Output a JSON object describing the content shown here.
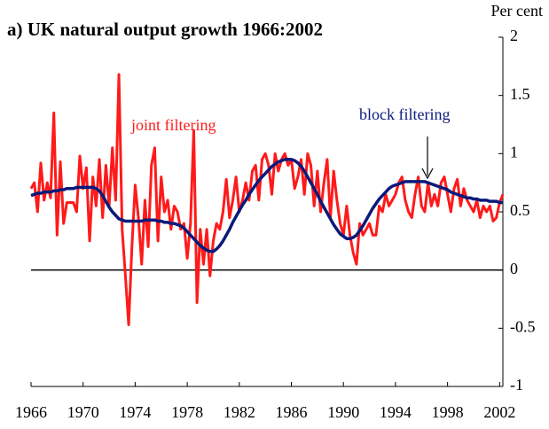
{
  "chart_data": {
    "type": "line",
    "title": "a) UK natural output growth 1966:2002",
    "y_label": "Per cent",
    "x": [
      1966,
      1966.25,
      1966.5,
      1966.75,
      1967,
      1967.25,
      1967.5,
      1967.75,
      1968,
      1968.25,
      1968.5,
      1968.75,
      1969,
      1969.25,
      1969.5,
      1969.75,
      1970,
      1970.25,
      1970.5,
      1970.75,
      1971,
      1971.25,
      1971.5,
      1971.75,
      1972,
      1972.25,
      1972.5,
      1972.75,
      1973,
      1973.25,
      1973.5,
      1973.75,
      1974,
      1974.25,
      1974.5,
      1974.75,
      1975,
      1975.25,
      1975.5,
      1975.75,
      1976,
      1976.25,
      1976.5,
      1976.75,
      1977,
      1977.25,
      1977.5,
      1977.75,
      1978,
      1978.25,
      1978.5,
      1978.75,
      1979,
      1979.25,
      1979.5,
      1979.75,
      1980,
      1980.25,
      1980.5,
      1980.75,
      1981,
      1981.25,
      1981.5,
      1981.75,
      1982,
      1982.25,
      1982.5,
      1982.75,
      1983,
      1983.25,
      1983.5,
      1983.75,
      1984,
      1984.25,
      1984.5,
      1984.75,
      1985,
      1985.25,
      1985.5,
      1985.75,
      1986,
      1986.25,
      1986.5,
      1986.75,
      1987,
      1987.25,
      1987.5,
      1987.75,
      1988,
      1988.25,
      1988.5,
      1988.75,
      1989,
      1989.25,
      1989.5,
      1989.75,
      1990,
      1990.25,
      1990.5,
      1990.75,
      1991,
      1991.25,
      1991.5,
      1991.75,
      1992,
      1992.25,
      1992.5,
      1992.75,
      1993,
      1993.25,
      1993.5,
      1993.75,
      1994,
      1994.25,
      1994.5,
      1994.75,
      1995,
      1995.25,
      1995.5,
      1995.75,
      1996,
      1996.25,
      1996.5,
      1996.75,
      1997,
      1997.25,
      1997.5,
      1997.75,
      1998,
      1998.25,
      1998.5,
      1998.75,
      1999,
      1999.25,
      1999.5,
      1999.75,
      2000,
      2000.25,
      2000.5,
      2000.75,
      2001,
      2001.25,
      2001.5,
      2001.75,
      2002,
      2002.25
    ],
    "series": [
      {
        "name": "joint filtering",
        "color": "#ff1a1a",
        "values": [
          0.7,
          0.75,
          0.5,
          0.92,
          0.6,
          0.75,
          0.62,
          1.35,
          0.3,
          0.93,
          0.4,
          0.58,
          0.58,
          0.58,
          0.5,
          0.98,
          0.7,
          0.88,
          0.25,
          0.8,
          0.55,
          0.95,
          0.45,
          0.9,
          0.55,
          1.05,
          0.6,
          1.68,
          0.35,
          -0.05,
          -0.47,
          0.2,
          0.73,
          0.45,
          0.05,
          0.6,
          0.2,
          0.9,
          1.05,
          0.25,
          0.8,
          0.5,
          0.6,
          0.35,
          0.55,
          0.5,
          0.35,
          0.4,
          0.1,
          0.4,
          1.2,
          -0.28,
          0.35,
          0.05,
          0.35,
          -0.05,
          0.25,
          0.4,
          0.35,
          0.5,
          0.78,
          0.45,
          0.6,
          0.8,
          0.5,
          0.6,
          0.75,
          0.6,
          0.85,
          0.9,
          0.6,
          0.95,
          1.0,
          0.9,
          0.65,
          1.0,
          0.85,
          0.95,
          1.0,
          0.9,
          0.95,
          0.7,
          0.8,
          0.95,
          0.65,
          1.0,
          0.9,
          0.55,
          0.85,
          0.5,
          0.75,
          0.95,
          0.45,
          0.85,
          0.6,
          0.4,
          0.3,
          0.55,
          0.3,
          0.15,
          0.05,
          0.4,
          0.3,
          0.35,
          0.4,
          0.3,
          0.3,
          0.55,
          0.5,
          0.65,
          0.55,
          0.6,
          0.65,
          0.75,
          0.8,
          0.6,
          0.5,
          0.45,
          0.65,
          0.8,
          0.55,
          0.5,
          0.75,
          0.55,
          0.65,
          0.55,
          0.75,
          0.8,
          0.65,
          0.5,
          0.7,
          0.78,
          0.55,
          0.7,
          0.6,
          0.55,
          0.5,
          0.6,
          0.45,
          0.55,
          0.5,
          0.55,
          0.42,
          0.45,
          0.58,
          0.65
        ]
      },
      {
        "name": "block filtering",
        "color": "#0a1a7a",
        "values": [
          0.64,
          0.65,
          0.66,
          0.66,
          0.67,
          0.67,
          0.67,
          0.68,
          0.68,
          0.69,
          0.69,
          0.7,
          0.7,
          0.7,
          0.71,
          0.71,
          0.71,
          0.71,
          0.71,
          0.71,
          0.7,
          0.68,
          0.64,
          0.59,
          0.54,
          0.5,
          0.47,
          0.44,
          0.43,
          0.42,
          0.42,
          0.42,
          0.42,
          0.42,
          0.42,
          0.43,
          0.43,
          0.43,
          0.43,
          0.42,
          0.42,
          0.41,
          0.41,
          0.4,
          0.4,
          0.39,
          0.38,
          0.36,
          0.33,
          0.3,
          0.27,
          0.24,
          0.21,
          0.19,
          0.17,
          0.16,
          0.16,
          0.18,
          0.21,
          0.25,
          0.3,
          0.35,
          0.41,
          0.46,
          0.51,
          0.56,
          0.6,
          0.65,
          0.69,
          0.73,
          0.77,
          0.8,
          0.83,
          0.86,
          0.89,
          0.91,
          0.93,
          0.94,
          0.95,
          0.95,
          0.95,
          0.94,
          0.92,
          0.89,
          0.85,
          0.8,
          0.75,
          0.7,
          0.65,
          0.59,
          0.54,
          0.49,
          0.44,
          0.39,
          0.35,
          0.31,
          0.29,
          0.27,
          0.27,
          0.28,
          0.3,
          0.34,
          0.38,
          0.43,
          0.48,
          0.53,
          0.57,
          0.61,
          0.64,
          0.67,
          0.7,
          0.72,
          0.73,
          0.74,
          0.75,
          0.76,
          0.76,
          0.76,
          0.76,
          0.76,
          0.76,
          0.76,
          0.75,
          0.74,
          0.73,
          0.72,
          0.71,
          0.7,
          0.69,
          0.67,
          0.66,
          0.65,
          0.64,
          0.63,
          0.62,
          0.62,
          0.61,
          0.61,
          0.6,
          0.6,
          0.6,
          0.59,
          0.59,
          0.59,
          0.58,
          0.58
        ]
      }
    ],
    "xlim": [
      1966,
      2002.25
    ],
    "xticks": [
      1966,
      1970,
      1974,
      1978,
      1982,
      1986,
      1990,
      1994,
      1998,
      2002
    ],
    "ylim": [
      -1,
      2
    ],
    "yticks": [
      -1,
      -0.5,
      0,
      0.5,
      1,
      1.5,
      2
    ]
  }
}
